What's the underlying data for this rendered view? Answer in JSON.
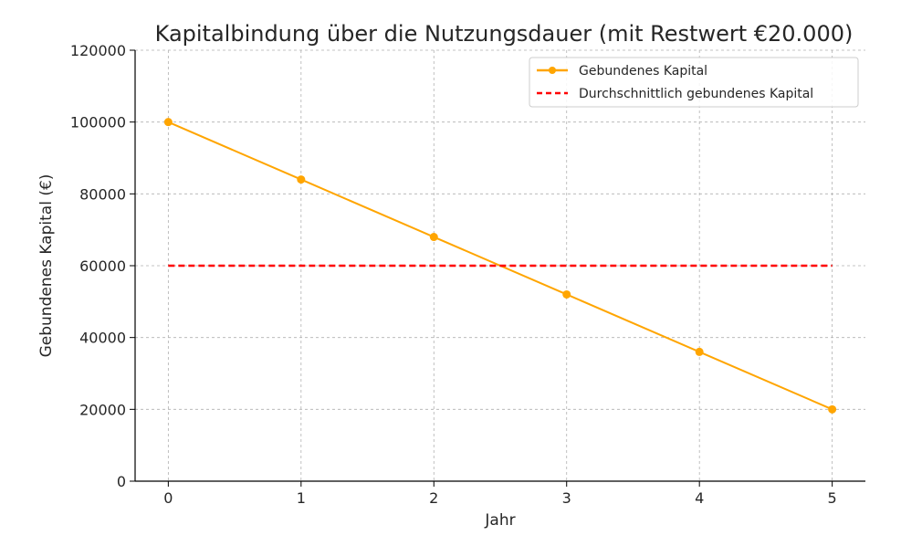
{
  "chart_data": {
    "type": "line",
    "title": "Kapitalbindung über die Nutzungsdauer (mit Restwert €20.000)",
    "xlabel": "Jahr",
    "ylabel": "Gebundenes Kapital (€)",
    "x": [
      0,
      1,
      2,
      3,
      4,
      5
    ],
    "xlim": [
      -0.25,
      5.25
    ],
    "ylim": [
      0,
      120000
    ],
    "xticks": [
      "0",
      "1",
      "2",
      "3",
      "4",
      "5"
    ],
    "yticks": [
      "0",
      "20000",
      "40000",
      "60000",
      "80000",
      "100000",
      "120000"
    ],
    "grid": true,
    "legend_position": "top-right",
    "series": [
      {
        "name": "Gebundenes Kapital",
        "values": [
          100000,
          84000,
          68000,
          52000,
          36000,
          20000
        ],
        "color": "#FFA500",
        "style": "solid",
        "marker": "circle"
      },
      {
        "name": "Durchschnittlich gebundenes Kapital",
        "values": [
          60000,
          60000,
          60000,
          60000,
          60000,
          60000
        ],
        "color": "#FF0000",
        "style": "dashed",
        "marker": "none"
      }
    ]
  }
}
